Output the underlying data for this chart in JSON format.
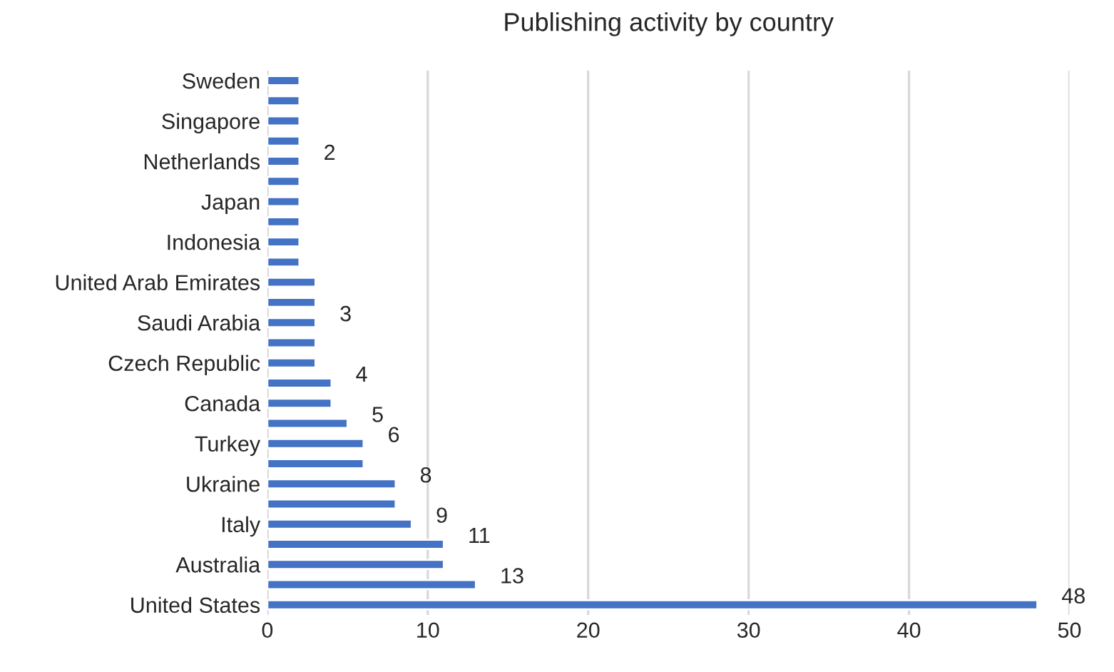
{
  "chart_data": {
    "type": "bar",
    "orientation": "horizontal",
    "title": "Publishing activity by country",
    "categories": [
      "Sweden",
      null,
      "Singapore",
      null,
      "Netherlands",
      null,
      "Japan",
      null,
      "Indonesia",
      null,
      "United Arab Emirates",
      null,
      "Saudi Arabia",
      null,
      "Czech Republic",
      null,
      "Canada",
      null,
      "Turkey",
      null,
      "Ukraine",
      null,
      "Italy",
      null,
      "Australia",
      null,
      "United States"
    ],
    "values": [
      2,
      2,
      2,
      2,
      2,
      2,
      2,
      2,
      2,
      2,
      3,
      3,
      3,
      3,
      3,
      4,
      4,
      5,
      6,
      6,
      8,
      8,
      9,
      11,
      11,
      13,
      48
    ],
    "value_labels": [
      null,
      null,
      null,
      null,
      "2",
      null,
      null,
      null,
      null,
      null,
      null,
      null,
      "3",
      null,
      null,
      "4",
      null,
      "5",
      "6",
      null,
      "8",
      null,
      "9",
      "11",
      null,
      "13",
      "48"
    ],
    "color": "#4472c4",
    "xlim": [
      0,
      50
    ],
    "xticks": [
      0,
      10,
      20,
      30,
      40,
      50
    ],
    "grid": "x"
  }
}
